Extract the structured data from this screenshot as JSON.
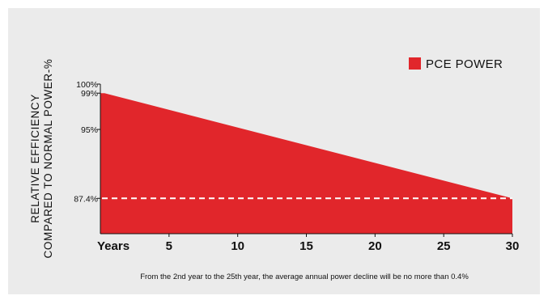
{
  "chart_data": {
    "type": "area",
    "ylabel_lines": [
      "RELATIVE EFFICIENCY",
      "COMPARED TO NORMAL POWER-%"
    ],
    "x_ticks": [
      "Years",
      "5",
      "10",
      "15",
      "20",
      "25",
      "30"
    ],
    "x_tick_values": [
      0,
      5,
      10,
      15,
      20,
      25,
      30
    ],
    "xlim": [
      0,
      30
    ],
    "y_ticks": [
      {
        "label": "100%",
        "value": 100
      },
      {
        "label": "99%",
        "value": 99
      },
      {
        "label": "95%",
        "value": 95
      },
      {
        "label": "87.4%",
        "value": 87.4
      }
    ],
    "ylim": [
      83.5,
      100
    ],
    "series": [
      {
        "name": "PCE POWER",
        "color": "#e1262b",
        "x": [
          0,
          0.3,
          30
        ],
        "values": [
          99,
          99,
          87.4
        ]
      }
    ],
    "reference_line": {
      "value": 87.4,
      "style": "dashed",
      "color": "#ffffff"
    },
    "legend": {
      "position": "top-right",
      "label": "PCE POWER"
    },
    "note": "From the 2nd year to the 25th year, the average annual power decline will be no more than 0.4%"
  }
}
